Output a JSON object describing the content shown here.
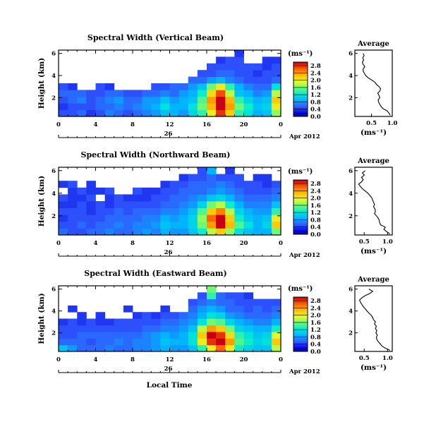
{
  "figure": {
    "xlabel": "Local Time",
    "date_label": "Apr 2012",
    "day_label": "26",
    "cbar_unit": "(ms⁻¹)",
    "avg_title": "Average",
    "avg_xlabel": "(ms⁻¹)"
  },
  "chart_data": [
    {
      "type": "heatmap",
      "title": "Spectral Width (Vertical Beam)",
      "ylabel": "Height (km)",
      "xlabel": "Local Time",
      "x_ticks": [
        "0",
        "4",
        "8",
        "12",
        "16",
        "20",
        "0"
      ],
      "y_ticks": [
        "2",
        "4",
        "6"
      ],
      "xlim": [
        0,
        24
      ],
      "ylim": [
        0.3,
        6.3
      ],
      "colorbar": {
        "ticks": [
          "0.0",
          "0.4",
          "0.8",
          "1.2",
          "1.6",
          "2.0",
          "2.4",
          "2.8"
        ],
        "range": [
          0,
          3.0
        ]
      },
      "cells": [
        [
          0.5,
          0.5,
          0.6,
          0.4,
          0.5,
          0.7,
          0.6,
          0.5,
          0.6,
          0.7,
          0.8,
          1.0,
          0.9,
          0.8,
          1.1,
          1.4,
          2.0,
          2.8,
          2.2,
          1.4,
          1.2,
          0.9,
          1.0,
          1.7
        ],
        [
          0.4,
          0.5,
          0.5,
          0.5,
          0.6,
          0.6,
          0.7,
          0.6,
          0.7,
          0.8,
          0.9,
          1.2,
          0.9,
          0.9,
          1.2,
          1.6,
          2.3,
          3.0,
          2.4,
          1.6,
          1.3,
          1.0,
          1.1,
          2.0
        ],
        [
          0.5,
          0.6,
          0.7,
          0.5,
          0.6,
          0.7,
          0.8,
          0.6,
          0.6,
          0.8,
          0.8,
          1.0,
          0.8,
          0.9,
          1.0,
          1.5,
          2.4,
          3.0,
          2.3,
          1.4,
          1.1,
          0.9,
          1.0,
          2.2
        ],
        [
          0.6,
          0.6,
          0.6,
          0.5,
          0.5,
          0.6,
          0.6,
          0.5,
          0.5,
          0.6,
          0.6,
          0.7,
          0.6,
          0.8,
          0.9,
          1.3,
          2.1,
          2.7,
          1.8,
          1.0,
          0.9,
          0.7,
          0.8,
          1.8
        ],
        [
          0.5,
          0.4,
          null,
          null,
          0.5,
          0.4,
          null,
          null,
          null,
          null,
          0.5,
          0.5,
          0.6,
          0.6,
          0.8,
          1.0,
          1.6,
          2.0,
          1.4,
          0.9,
          0.7,
          0.6,
          0.6,
          1.2
        ],
        [
          null,
          null,
          null,
          null,
          null,
          null,
          null,
          null,
          null,
          null,
          null,
          null,
          null,
          null,
          0.6,
          0.6,
          0.8,
          0.9,
          0.7,
          0.6,
          0.5,
          0.5,
          0.5,
          0.6
        ],
        [
          null,
          null,
          null,
          null,
          null,
          null,
          null,
          null,
          null,
          null,
          null,
          null,
          null,
          null,
          null,
          0.5,
          0.5,
          0.6,
          0.6,
          0.5,
          0.5,
          0.4,
          0.5,
          0.5
        ],
        [
          null,
          null,
          null,
          null,
          null,
          null,
          null,
          null,
          null,
          null,
          null,
          null,
          null,
          null,
          null,
          null,
          0.5,
          0.5,
          0.5,
          0.5,
          0.5,
          0.5,
          0.4,
          0.5
        ],
        [
          null,
          null,
          null,
          null,
          null,
          null,
          null,
          null,
          null,
          null,
          null,
          null,
          null,
          null,
          null,
          null,
          null,
          0.4,
          0.5,
          0.5,
          null,
          null,
          0.4,
          0.4
        ],
        [
          null,
          null,
          null,
          null,
          null,
          null,
          null,
          null,
          null,
          null,
          null,
          null,
          null,
          null,
          null,
          null,
          null,
          null,
          null,
          0.4,
          null,
          null,
          null,
          null
        ]
      ],
      "average": {
        "x_ticks": [
          "0.5",
          "1.0"
        ],
        "y_ticks": [
          "2",
          "4",
          "6"
        ],
        "xlim": [
          0.1,
          1.0
        ],
        "height": [
          0.4,
          0.6,
          0.8,
          1.0,
          1.2,
          1.4,
          1.6,
          1.8,
          2.0,
          2.2,
          2.4,
          2.6,
          2.8,
          3.0,
          3.2,
          3.4,
          3.6,
          3.8,
          4.0,
          4.2,
          4.4,
          4.6,
          4.8,
          5.0,
          5.2,
          5.4,
          5.6,
          5.8,
          6.0
        ],
        "width": [
          0.95,
          0.92,
          0.88,
          0.78,
          0.73,
          0.7,
          0.67,
          0.66,
          0.7,
          0.68,
          0.65,
          0.7,
          0.72,
          0.68,
          0.62,
          0.58,
          0.5,
          0.42,
          0.36,
          0.33,
          0.3,
          0.3,
          0.34,
          0.3,
          0.28,
          0.31,
          0.29,
          0.32,
          0.3
        ]
      }
    },
    {
      "type": "heatmap",
      "title": "Spectral Width (Northward Beam)",
      "ylabel": "Height (km)",
      "xlabel": "Local Time",
      "x_ticks": [
        "0",
        "4",
        "8",
        "12",
        "16",
        "20",
        "0"
      ],
      "y_ticks": [
        "2",
        "4",
        "6"
      ],
      "xlim": [
        0,
        24
      ],
      "ylim": [
        0.3,
        6.3
      ],
      "colorbar": {
        "ticks": [
          "0.0",
          "0.4",
          "0.8",
          "1.2",
          "1.6",
          "2.0",
          "2.4",
          "2.8"
        ],
        "range": [
          0,
          3.0
        ]
      },
      "cells": [
        [
          0.6,
          0.5,
          0.5,
          0.6,
          0.6,
          0.7,
          0.6,
          0.6,
          0.7,
          0.8,
          0.7,
          0.9,
          0.8,
          0.8,
          1.0,
          1.3,
          1.8,
          2.2,
          1.7,
          1.2,
          1.0,
          0.9,
          0.9,
          1.6
        ],
        [
          0.5,
          0.5,
          0.6,
          0.5,
          0.6,
          0.6,
          0.7,
          0.6,
          0.7,
          0.7,
          0.8,
          1.0,
          0.9,
          0.9,
          1.1,
          1.6,
          2.4,
          3.0,
          2.3,
          1.5,
          1.2,
          0.9,
          1.1,
          2.2
        ],
        [
          0.4,
          0.5,
          0.5,
          0.5,
          0.5,
          0.6,
          0.6,
          0.6,
          0.6,
          0.7,
          0.7,
          0.9,
          0.8,
          0.9,
          1.1,
          1.7,
          2.6,
          3.0,
          2.2,
          1.3,
          1.0,
          0.9,
          1.0,
          2.0
        ],
        [
          0.5,
          0.5,
          0.5,
          0.4,
          0.5,
          0.5,
          0.6,
          0.5,
          0.6,
          0.6,
          0.6,
          0.7,
          0.7,
          0.8,
          1.0,
          1.5,
          2.2,
          2.5,
          1.8,
          1.1,
          0.9,
          0.8,
          0.8,
          1.4
        ],
        [
          0.4,
          0.4,
          0.5,
          0.4,
          0.5,
          0.4,
          0.5,
          0.5,
          0.5,
          0.5,
          0.5,
          0.6,
          0.6,
          0.7,
          0.8,
          1.1,
          1.6,
          1.8,
          1.3,
          0.9,
          0.7,
          0.7,
          0.7,
          1.0
        ],
        [
          0.5,
          0.4,
          0.4,
          0.5,
          null,
          0.4,
          0.5,
          0.4,
          0.4,
          0.4,
          0.5,
          0.5,
          0.6,
          0.6,
          0.7,
          0.8,
          1.0,
          1.1,
          0.9,
          0.7,
          0.6,
          0.6,
          0.6,
          0.7
        ],
        [
          null,
          0.4,
          0.5,
          0.4,
          0.4,
          0.5,
          null,
          null,
          0.5,
          0.4,
          0.4,
          0.5,
          0.5,
          0.6,
          0.6,
          0.6,
          0.7,
          0.8,
          0.7,
          0.6,
          0.5,
          0.5,
          0.5,
          0.6
        ],
        [
          0.4,
          0.5,
          null,
          0.4,
          null,
          null,
          null,
          null,
          null,
          null,
          null,
          0.4,
          0.5,
          0.5,
          0.6,
          0.6,
          0.6,
          0.7,
          0.6,
          0.5,
          0.5,
          0.5,
          0.4,
          0.5
        ],
        [
          null,
          null,
          null,
          null,
          null,
          null,
          null,
          null,
          null,
          null,
          null,
          null,
          null,
          0.4,
          0.5,
          0.5,
          0.6,
          0.5,
          0.5,
          0.5,
          null,
          0.4,
          0.4,
          null
        ],
        [
          null,
          null,
          null,
          null,
          null,
          null,
          null,
          null,
          null,
          null,
          null,
          null,
          null,
          null,
          null,
          0.5,
          0.9,
          null,
          0.4,
          null,
          null,
          null,
          null,
          null
        ]
      ],
      "average": {
        "x_ticks": [
          "0.5",
          "1.0"
        ],
        "y_ticks": [
          "2",
          "4",
          "6"
        ],
        "xlim": [
          0.3,
          1.1
        ],
        "height": [
          0.4,
          0.6,
          0.8,
          1.0,
          1.2,
          1.4,
          1.6,
          1.8,
          2.0,
          2.2,
          2.4,
          2.6,
          2.8,
          3.0,
          3.2,
          3.4,
          3.6,
          3.8,
          4.0,
          4.2,
          4.4,
          4.6,
          4.8,
          5.0,
          5.2,
          5.4,
          5.6,
          5.8,
          6.0
        ],
        "width": [
          1.05,
          0.98,
          0.92,
          0.95,
          0.85,
          0.83,
          0.82,
          0.8,
          0.76,
          0.72,
          0.74,
          0.73,
          0.7,
          0.72,
          0.7,
          0.68,
          0.66,
          0.62,
          0.58,
          0.52,
          0.46,
          0.42,
          0.38,
          0.44,
          0.48,
          0.44,
          0.5,
          0.46,
          0.52
        ]
      }
    },
    {
      "type": "heatmap",
      "title": "Spectral Width (Eastward Beam)",
      "ylabel": "Height (km)",
      "xlabel": "Local Time",
      "x_ticks": [
        "0",
        "4",
        "8",
        "12",
        "16",
        "20",
        "0"
      ],
      "y_ticks": [
        "2",
        "4",
        "6"
      ],
      "xlim": [
        0,
        24
      ],
      "ylim": [
        0.3,
        6.3
      ],
      "colorbar": {
        "ticks": [
          "0.0",
          "0.4",
          "0.8",
          "1.2",
          "1.6",
          "2.0",
          "2.4",
          "2.8"
        ],
        "range": [
          0,
          3.0
        ]
      },
      "cells": [
        [
          1.0,
          0.8,
          0.6,
          0.6,
          0.6,
          0.7,
          0.6,
          0.6,
          0.7,
          0.7,
          0.8,
          0.9,
          0.8,
          0.8,
          1.0,
          1.4,
          2.0,
          2.6,
          2.0,
          1.3,
          1.1,
          1.0,
          1.0,
          1.8
        ],
        [
          0.6,
          0.6,
          0.6,
          0.5,
          0.6,
          0.6,
          0.7,
          0.6,
          0.7,
          0.7,
          0.8,
          1.0,
          0.9,
          0.9,
          1.2,
          2.0,
          2.8,
          3.0,
          2.4,
          1.5,
          1.3,
          1.1,
          1.2,
          2.2
        ],
        [
          0.5,
          0.5,
          0.6,
          0.6,
          0.6,
          0.6,
          0.6,
          0.6,
          0.6,
          0.7,
          0.8,
          0.9,
          0.8,
          0.9,
          1.2,
          2.2,
          3.0,
          2.8,
          2.1,
          1.4,
          1.2,
          1.0,
          1.1,
          1.9
        ],
        [
          0.5,
          0.5,
          0.5,
          0.5,
          0.5,
          0.5,
          0.5,
          0.5,
          0.5,
          0.6,
          0.6,
          0.7,
          0.7,
          0.8,
          1.0,
          1.8,
          2.4,
          2.2,
          1.6,
          1.1,
          1.0,
          0.9,
          0.9,
          1.3
        ],
        [
          0.4,
          0.5,
          0.4,
          0.5,
          0.4,
          0.4,
          0.5,
          0.5,
          0.5,
          0.5,
          0.5,
          0.6,
          0.6,
          0.7,
          0.8,
          1.2,
          1.6,
          1.5,
          1.1,
          0.9,
          0.8,
          0.7,
          0.7,
          0.9
        ],
        [
          null,
          null,
          0.4,
          null,
          0.4,
          null,
          null,
          null,
          0.4,
          0.5,
          0.4,
          0.5,
          0.5,
          0.6,
          0.7,
          0.9,
          1.2,
          1.1,
          0.8,
          0.7,
          0.6,
          0.6,
          0.6,
          0.7
        ],
        [
          null,
          0.4,
          null,
          null,
          null,
          null,
          null,
          0.4,
          null,
          null,
          null,
          0.4,
          null,
          null,
          0.6,
          0.8,
          0.9,
          0.8,
          0.6,
          0.6,
          0.5,
          0.6,
          0.5,
          0.6
        ],
        [
          null,
          null,
          null,
          null,
          null,
          null,
          null,
          null,
          null,
          null,
          null,
          null,
          null,
          null,
          0.5,
          0.6,
          0.7,
          0.6,
          0.6,
          0.5,
          0.5,
          0.5,
          0.5,
          0.5
        ],
        [
          null,
          null,
          null,
          null,
          null,
          null,
          null,
          null,
          null,
          null,
          null,
          null,
          null,
          null,
          null,
          0.5,
          1.4,
          0.6,
          0.5,
          0.5,
          0.4,
          null,
          null,
          null
        ],
        [
          null,
          null,
          null,
          null,
          null,
          null,
          null,
          null,
          null,
          null,
          null,
          null,
          null,
          null,
          null,
          null,
          1.6,
          null,
          null,
          null,
          null,
          null,
          null,
          null
        ]
      ],
      "average": {
        "x_ticks": [
          "0.5",
          "1.0"
        ],
        "y_ticks": [
          "2",
          "4",
          "6"
        ],
        "xlim": [
          0.3,
          1.1
        ],
        "height": [
          0.4,
          0.6,
          0.8,
          1.0,
          1.2,
          1.4,
          1.6,
          1.8,
          2.0,
          2.2,
          2.4,
          2.6,
          2.8,
          3.0,
          3.2,
          3.4,
          3.6,
          3.8,
          4.0,
          4.2,
          4.4,
          4.6,
          4.8,
          5.0,
          5.2,
          5.4,
          5.6,
          5.8,
          6.0
        ],
        "width": [
          1.05,
          0.95,
          0.88,
          0.84,
          0.8,
          0.77,
          0.76,
          0.78,
          0.75,
          0.77,
          0.74,
          0.76,
          0.72,
          0.74,
          0.7,
          0.68,
          0.65,
          0.6,
          0.56,
          0.52,
          0.48,
          0.45,
          0.42,
          0.4,
          0.45,
          0.52,
          0.62,
          0.68,
          0.6
        ]
      }
    }
  ]
}
